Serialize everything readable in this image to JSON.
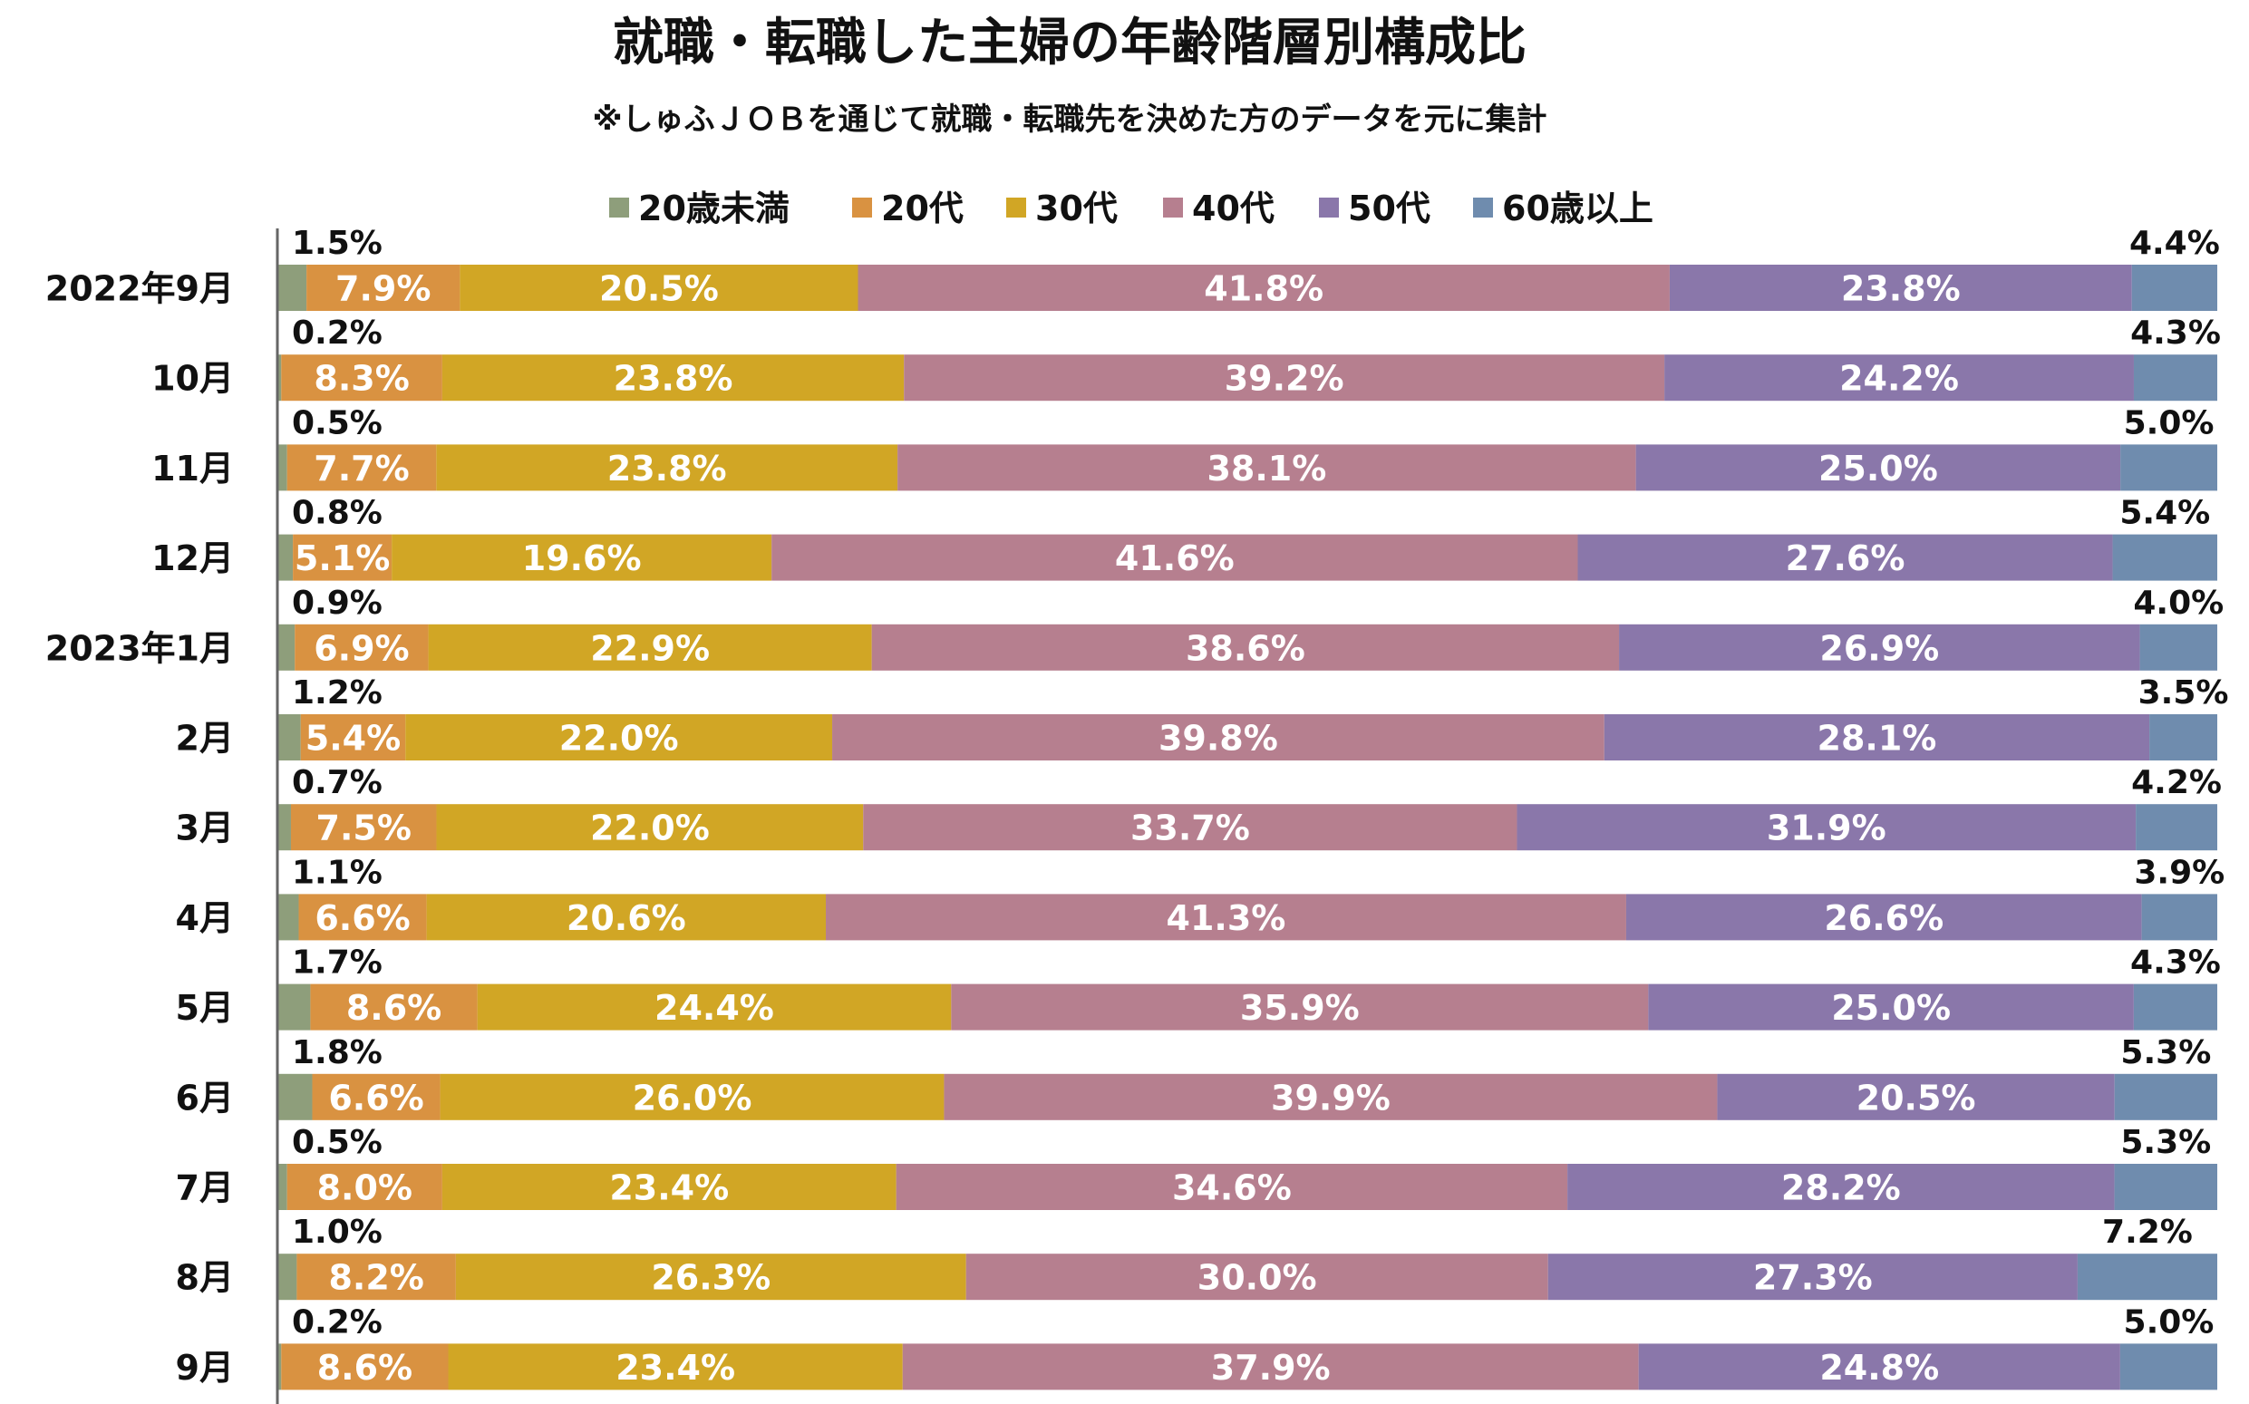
{
  "chart_data": {
    "type": "bar",
    "orientation": "horizontal",
    "stacked": true,
    "title": "就職・転職した主婦の年齢階層別構成比",
    "subtitle": "※しゅふＪＯＢを通じて就職・転職先を決めた方のデータを元に集計",
    "xlim": [
      0,
      100
    ],
    "legend_position": "top",
    "categories": [
      "2022年9月",
      "10月",
      "11月",
      "12月",
      "2023年1月",
      "2月",
      "3月",
      "4月",
      "5月",
      "6月",
      "7月",
      "8月",
      "9月"
    ],
    "series": [
      {
        "name": "20歳未満",
        "color": "#8e9e7b",
        "values": [
          1.5,
          0.2,
          0.5,
          0.8,
          0.9,
          1.2,
          0.7,
          1.1,
          1.7,
          1.8,
          0.5,
          1.0,
          0.2
        ],
        "labels": [
          "1.5%",
          "0.2%",
          "0.5%",
          "0.8%",
          "0.9%",
          "1.2%",
          "0.7%",
          "1.1%",
          "1.7%",
          "1.8%",
          "0.5%",
          "1.0%",
          "0.2%"
        ]
      },
      {
        "name": "20代",
        "color": "#d99241",
        "values": [
          7.9,
          8.3,
          7.7,
          5.1,
          6.9,
          5.4,
          7.5,
          6.6,
          8.6,
          6.6,
          8.0,
          8.2,
          8.6
        ],
        "labels": [
          "7.9%",
          "8.3%",
          "7.7%",
          "5.1%",
          "6.9%",
          "5.4%",
          "7.5%",
          "6.6%",
          "8.6%",
          "6.6%",
          "8.0%",
          "8.2%",
          "8.6%"
        ]
      },
      {
        "name": "30代",
        "color": "#d1a625",
        "values": [
          20.5,
          23.8,
          23.8,
          19.6,
          22.9,
          22.0,
          22.0,
          20.6,
          24.4,
          26.0,
          23.4,
          26.3,
          23.4
        ],
        "labels": [
          "20.5%",
          "23.8%",
          "23.8%",
          "19.6%",
          "22.9%",
          "22.0%",
          "22.0%",
          "20.6%",
          "24.4%",
          "26.0%",
          "23.4%",
          "26.3%",
          "23.4%"
        ]
      },
      {
        "name": "40代",
        "color": "#b67f8f",
        "values": [
          41.8,
          39.2,
          38.1,
          41.6,
          38.6,
          39.8,
          33.7,
          41.3,
          35.9,
          39.9,
          34.6,
          30.0,
          37.9
        ],
        "labels": [
          "41.8%",
          "39.2%",
          "38.1%",
          "41.6%",
          "38.6%",
          "39.8%",
          "33.7%",
          "41.3%",
          "35.9%",
          "39.9%",
          "34.6%",
          "30.0%",
          "37.9%"
        ]
      },
      {
        "name": "50代",
        "color": "#8a77aa",
        "values": [
          23.8,
          24.2,
          25.0,
          27.6,
          26.9,
          28.1,
          31.9,
          26.6,
          25.0,
          20.5,
          28.2,
          27.3,
          24.8
        ],
        "labels": [
          "23.8%",
          "24.2%",
          "25.0%",
          "27.6%",
          "26.9%",
          "28.1%",
          "31.9%",
          "26.6%",
          "25.0%",
          "20.5%",
          "28.2%",
          "27.3%",
          "24.8%"
        ]
      },
      {
        "name": "60歳以上",
        "color": "#6f8cae",
        "values": [
          4.4,
          4.3,
          5.0,
          5.4,
          4.0,
          3.5,
          4.2,
          3.9,
          4.3,
          5.3,
          5.3,
          7.2,
          5.0
        ],
        "labels": [
          "4.4%",
          "4.3%",
          "5.0%",
          "5.4%",
          "4.0%",
          "3.5%",
          "4.2%",
          "3.9%",
          "4.3%",
          "5.3%",
          "5.3%",
          "7.2%",
          "5.0%"
        ]
      }
    ]
  }
}
